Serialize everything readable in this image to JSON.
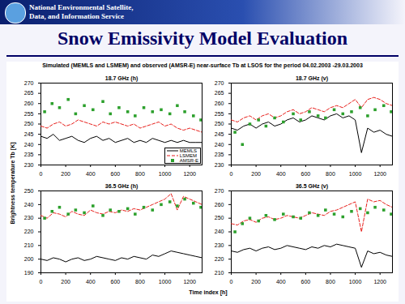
{
  "header": {
    "agency": [
      "National Environmental Satellite,",
      "Data, and Information Service"
    ]
  },
  "title": "Snow Emissivity Model Evaluation",
  "figure": {
    "title": "Simulated (MEMLS and LSMEM) and observed (AMSR-E) near-surface Tb at LSOS for the period 04.02.2003 -29.03.2003",
    "ylabel": "Brightness temperature Tb [K]",
    "xlabel": "Time index [h]"
  },
  "chart_data": [
    {
      "type": "line",
      "title": "18.7 GHz (h)",
      "legend": "lower right",
      "x": [
        0,
        50,
        100,
        150,
        200,
        250,
        300,
        350,
        400,
        450,
        500,
        550,
        600,
        650,
        700,
        750,
        800,
        850,
        900,
        950,
        1000,
        1050,
        1100,
        1150,
        1200,
        1250,
        1300
      ],
      "xlim": [
        0,
        1300
      ],
      "xticks": [
        0,
        200,
        400,
        600,
        800,
        1000,
        1200
      ],
      "ylim": [
        230,
        270
      ],
      "yticks": [
        230,
        235,
        240,
        245,
        250,
        255,
        260,
        265,
        270
      ],
      "series": [
        {
          "name": "MEMLS",
          "color": "#000000",
          "line_style": "solid",
          "values": [
            244,
            243,
            245,
            242,
            243,
            244,
            242,
            241,
            243,
            244,
            242,
            243,
            241,
            242,
            243,
            241,
            242,
            241,
            243,
            242,
            241,
            242,
            241,
            242,
            241,
            241,
            241
          ]
        },
        {
          "name": "LSMEM",
          "color": "#e8201c",
          "line_style": "dashed",
          "values": [
            249,
            248,
            250,
            251,
            249,
            250,
            252,
            251,
            250,
            249,
            251,
            250,
            251,
            250,
            249,
            250,
            248,
            249,
            250,
            251,
            249,
            250,
            248,
            247,
            248,
            247,
            246
          ]
        },
        {
          "name": "AMSR-E",
          "color": "#2ca02c",
          "type": "scatter",
          "marker": "square",
          "x": [
            30,
            90,
            150,
            220,
            280,
            350,
            420,
            500,
            560,
            630,
            700,
            760,
            830,
            900,
            970,
            1040,
            1100,
            1160,
            1230,
            1290
          ],
          "values": [
            256,
            260,
            258,
            262,
            255,
            259,
            257,
            261,
            255,
            258,
            256,
            254,
            258,
            256,
            257,
            255,
            259,
            256,
            254,
            252
          ]
        }
      ]
    },
    {
      "type": "line",
      "title": "18.7 GHz (v)",
      "x": [
        0,
        50,
        100,
        150,
        200,
        250,
        300,
        350,
        400,
        450,
        500,
        550,
        600,
        650,
        700,
        750,
        800,
        850,
        900,
        950,
        1000,
        1050,
        1100,
        1150,
        1200,
        1250,
        1300
      ],
      "xlim": [
        0,
        1300
      ],
      "xticks": [
        0,
        200,
        400,
        600,
        800,
        1000,
        1200
      ],
      "ylim": [
        230,
        270
      ],
      "yticks": [
        230,
        235,
        240,
        245,
        250,
        255,
        260,
        265,
        270
      ],
      "series": [
        {
          "color": "#000000",
          "line_style": "solid",
          "values": [
            248,
            247,
            249,
            250,
            248,
            250,
            251,
            249,
            250,
            252,
            253,
            251,
            252,
            254,
            253,
            252,
            254,
            255,
            253,
            254,
            252,
            236,
            248,
            246,
            247,
            245,
            244
          ]
        },
        {
          "color": "#e8201c",
          "line_style": "dashed",
          "values": [
            252,
            251,
            253,
            254,
            252,
            254,
            255,
            253,
            254,
            256,
            257,
            255,
            256,
            258,
            257,
            256,
            258,
            259,
            258,
            260,
            262,
            258,
            262,
            263,
            262,
            260,
            259
          ]
        },
        {
          "color": "#2ca02c",
          "type": "scatter",
          "marker": "square",
          "x": [
            30,
            90,
            150,
            220,
            280,
            350,
            420,
            500,
            560,
            630,
            700,
            760,
            830,
            900,
            970,
            1040,
            1100,
            1160,
            1230,
            1290
          ],
          "values": [
            246,
            240,
            250,
            252,
            249,
            253,
            251,
            255,
            252,
            256,
            254,
            253,
            257,
            255,
            256,
            258,
            254,
            257,
            259,
            256
          ]
        }
      ]
    },
    {
      "type": "line",
      "title": "36.5 GHz (h)",
      "x": [
        0,
        50,
        100,
        150,
        200,
        250,
        300,
        350,
        400,
        450,
        500,
        550,
        600,
        650,
        700,
        750,
        800,
        850,
        900,
        950,
        1000,
        1050,
        1100,
        1150,
        1200,
        1250,
        1300
      ],
      "xlim": [
        0,
        1300
      ],
      "xticks": [
        0,
        200,
        400,
        600,
        800,
        1000,
        1200
      ],
      "ylim": [
        190,
        250
      ],
      "yticks": [
        190,
        200,
        210,
        220,
        230,
        240,
        250
      ],
      "series": [
        {
          "color": "#000000",
          "line_style": "solid",
          "values": [
            200,
            199,
            201,
            200,
            198,
            200,
            201,
            199,
            200,
            202,
            201,
            200,
            199,
            201,
            200,
            202,
            201,
            200,
            203,
            202,
            204,
            206,
            205,
            204,
            203,
            202,
            201
          ]
        },
        {
          "color": "#e8201c",
          "line_style": "dashed",
          "values": [
            232,
            230,
            234,
            233,
            231,
            235,
            233,
            232,
            236,
            234,
            233,
            235,
            234,
            236,
            235,
            237,
            236,
            238,
            240,
            242,
            244,
            248,
            236,
            246,
            244,
            242,
            240
          ]
        },
        {
          "color": "#2ca02c",
          "type": "scatter",
          "marker": "square",
          "x": [
            30,
            90,
            150,
            220,
            280,
            350,
            420,
            500,
            560,
            630,
            700,
            760,
            830,
            900,
            970,
            1040,
            1100,
            1160,
            1230,
            1290
          ],
          "values": [
            230,
            235,
            238,
            233,
            236,
            234,
            239,
            232,
            236,
            235,
            237,
            233,
            238,
            236,
            240,
            242,
            239,
            244,
            241,
            238
          ]
        }
      ]
    },
    {
      "type": "line",
      "title": "36.5 GHz (v)",
      "x": [
        0,
        50,
        100,
        150,
        200,
        250,
        300,
        350,
        400,
        450,
        500,
        550,
        600,
        650,
        700,
        750,
        800,
        850,
        900,
        950,
        1000,
        1050,
        1100,
        1150,
        1200,
        1250,
        1300
      ],
      "xlim": [
        0,
        1300
      ],
      "xticks": [
        0,
        200,
        400,
        600,
        800,
        1000,
        1200
      ],
      "ylim": [
        210,
        270
      ],
      "yticks": [
        210,
        220,
        230,
        240,
        250,
        260,
        270
      ],
      "series": [
        {
          "color": "#000000",
          "line_style": "solid",
          "values": [
            226,
            225,
            227,
            228,
            226,
            228,
            229,
            227,
            228,
            230,
            229,
            228,
            227,
            229,
            228,
            230,
            229,
            231,
            230,
            229,
            228,
            214,
            226,
            224,
            225,
            223,
            222
          ]
        },
        {
          "color": "#e8201c",
          "line_style": "dashed",
          "values": [
            246,
            245,
            248,
            249,
            247,
            250,
            251,
            249,
            250,
            252,
            251,
            250,
            252,
            254,
            253,
            252,
            255,
            256,
            258,
            260,
            262,
            240,
            264,
            262,
            263,
            260,
            258
          ]
        },
        {
          "color": "#2ca02c",
          "type": "scatter",
          "marker": "square",
          "x": [
            30,
            90,
            150,
            220,
            280,
            350,
            420,
            500,
            560,
            630,
            700,
            760,
            830,
            900,
            970,
            1040,
            1100,
            1160,
            1230,
            1290
          ],
          "values": [
            240,
            246,
            250,
            248,
            252,
            249,
            253,
            251,
            250,
            254,
            252,
            256,
            253,
            251,
            255,
            257,
            254,
            258,
            256,
            253
          ]
        }
      ]
    }
  ]
}
